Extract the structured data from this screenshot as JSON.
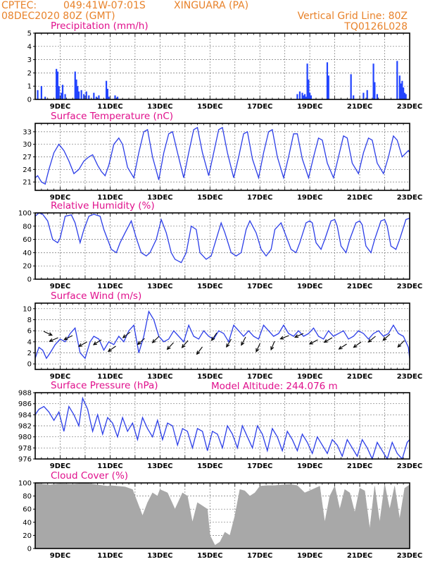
{
  "header": {
    "source": "CPTEC:",
    "coords": "049:41W-07:01S",
    "station": "XINGUARA (PA)",
    "run_time": "08DEC2020 80Z (GMT)",
    "grid_note": "Vertical Grid Line: 80Z",
    "product_code": "TQ0126L028"
  },
  "model_altitude": "Model Altitude: 244.076 m",
  "chart_data": [
    {
      "id": "precipitation",
      "type": "bar",
      "title": "Precipitation (mm/h)",
      "x_range_days": [
        8.0,
        23.0
      ],
      "x_ticks": [
        "9DEC",
        "11DEC",
        "13DEC",
        "15DEC",
        "17DEC",
        "19DEC",
        "21DEC",
        "23DEC"
      ],
      "ylim": [
        0,
        5
      ],
      "y_ticks": [
        0,
        1,
        2,
        3,
        4,
        5
      ],
      "x": [
        8.1,
        8.25,
        8.4,
        8.85,
        8.9,
        8.95,
        9.05,
        9.1,
        9.2,
        9.6,
        9.65,
        9.7,
        9.75,
        9.85,
        9.95,
        10.05,
        10.15,
        10.35,
        10.45,
        10.55,
        10.85,
        10.9,
        10.95,
        11.2,
        11.3,
        18.5,
        18.6,
        18.7,
        18.75,
        18.8,
        18.85,
        18.9,
        18.95,
        19.0,
        19.05,
        19.7,
        19.75,
        20.65,
        20.75,
        21.15,
        21.3,
        21.55,
        21.6,
        21.7,
        22.5,
        22.6,
        22.65,
        22.7,
        22.75,
        22.8,
        22.85
      ],
      "values": [
        0.7,
        1.0,
        0.2,
        2.3,
        2.1,
        1.0,
        0.5,
        1.1,
        0.4,
        2.1,
        1.5,
        1.0,
        0.6,
        0.7,
        0.4,
        0.6,
        0.3,
        0.5,
        0.2,
        0.3,
        1.4,
        0.8,
        0.2,
        0.3,
        0.2,
        0.4,
        0.6,
        0.5,
        0.3,
        0.4,
        0.2,
        2.7,
        1.5,
        0.5,
        0.3,
        2.8,
        1.8,
        1.9,
        0.3,
        0.5,
        0.7,
        2.7,
        1.3,
        0.4,
        2.9,
        1.8,
        1.2,
        1.4,
        0.9,
        0.5,
        0.4
      ]
    },
    {
      "id": "temperature",
      "type": "line",
      "title": "Surface Temperature (nC)",
      "x_range_days": [
        8.0,
        23.0
      ],
      "x_ticks": [
        "9DEC",
        "11DEC",
        "13DEC",
        "15DEC",
        "17DEC",
        "19DEC",
        "21DEC",
        "23DEC"
      ],
      "ylim": [
        19,
        35
      ],
      "y_ticks": [
        21,
        24,
        27,
        30,
        33
      ],
      "x": [
        8.0,
        8.1,
        8.25,
        8.4,
        8.55,
        8.75,
        8.95,
        9.15,
        9.35,
        9.55,
        9.75,
        9.95,
        10.15,
        10.3,
        10.5,
        10.65,
        10.8,
        10.95,
        11.15,
        11.35,
        11.5,
        11.7,
        11.95,
        12.15,
        12.35,
        12.5,
        12.7,
        12.95,
        13.15,
        13.35,
        13.5,
        13.7,
        13.95,
        14.15,
        14.35,
        14.5,
        14.7,
        14.95,
        15.15,
        15.35,
        15.5,
        15.7,
        15.95,
        16.15,
        16.35,
        16.5,
        16.7,
        16.95,
        17.15,
        17.35,
        17.5,
        17.7,
        17.95,
        18.15,
        18.35,
        18.5,
        18.7,
        18.95,
        19.15,
        19.35,
        19.5,
        19.7,
        19.95,
        20.15,
        20.35,
        20.5,
        20.7,
        20.95,
        21.15,
        21.35,
        21.5,
        21.7,
        21.95,
        22.15,
        22.35,
        22.5,
        22.7,
        22.95,
        23.0
      ],
      "values": [
        22,
        22.5,
        21,
        20.5,
        24,
        28,
        30,
        28.5,
        26,
        23,
        24,
        26,
        27,
        27.5,
        25,
        23.5,
        22.5,
        25,
        30,
        31.5,
        30,
        24.5,
        22,
        28,
        33,
        33.5,
        27,
        21.5,
        28,
        32.5,
        33,
        28,
        22,
        28,
        33.5,
        34,
        28,
        22.5,
        28,
        33.5,
        34,
        28,
        22,
        27,
        32.5,
        33,
        26.5,
        22,
        28,
        33,
        33.5,
        27,
        22,
        27,
        32.5,
        32.5,
        26.5,
        22,
        27,
        31.5,
        31,
        25.5,
        22,
        27,
        32,
        31.5,
        25.5,
        23,
        28,
        31.5,
        31,
        25.5,
        23,
        27,
        32,
        31,
        27,
        28.5,
        28
      ]
    },
    {
      "id": "humidity",
      "type": "line",
      "title": "Relative Humidity (%)",
      "x_range_days": [
        8.0,
        23.0
      ],
      "x_ticks": [
        "9DEC",
        "11DEC",
        "13DEC",
        "15DEC",
        "17DEC",
        "19DEC",
        "21DEC",
        "23DEC"
      ],
      "ylim": [
        0,
        100
      ],
      "y_ticks": [
        0,
        20,
        40,
        60,
        80,
        100
      ],
      "x": [
        8.0,
        8.15,
        8.3,
        8.5,
        8.7,
        8.9,
        9.0,
        9.2,
        9.45,
        9.6,
        9.8,
        9.95,
        10.15,
        10.35,
        10.6,
        10.75,
        10.9,
        11.05,
        11.25,
        11.4,
        11.6,
        11.85,
        12.05,
        12.25,
        12.45,
        12.6,
        12.85,
        13.05,
        13.25,
        13.45,
        13.6,
        13.85,
        14.05,
        14.25,
        14.45,
        14.6,
        14.85,
        15.05,
        15.25,
        15.45,
        15.6,
        15.85,
        16.05,
        16.25,
        16.45,
        16.6,
        16.85,
        17.05,
        17.25,
        17.45,
        17.6,
        17.85,
        18.05,
        18.25,
        18.45,
        18.6,
        18.85,
        19.0,
        19.1,
        19.25,
        19.45,
        19.6,
        19.85,
        20.0,
        20.1,
        20.25,
        20.45,
        20.6,
        20.85,
        21.0,
        21.1,
        21.25,
        21.45,
        21.6,
        21.85,
        22.0,
        22.1,
        22.25,
        22.45,
        22.6,
        22.85,
        23.0
      ],
      "values": [
        95,
        100,
        98,
        88,
        60,
        55,
        62,
        95,
        97,
        85,
        55,
        75,
        95,
        98,
        95,
        75,
        60,
        45,
        40,
        55,
        70,
        88,
        62,
        40,
        35,
        40,
        60,
        90,
        70,
        40,
        30,
        25,
        40,
        80,
        75,
        40,
        30,
        35,
        60,
        85,
        70,
        40,
        35,
        40,
        75,
        88,
        70,
        45,
        35,
        45,
        75,
        85,
        65,
        45,
        40,
        55,
        85,
        88,
        85,
        55,
        45,
        60,
        88,
        90,
        80,
        50,
        40,
        60,
        85,
        88,
        82,
        50,
        40,
        60,
        88,
        90,
        80,
        50,
        45,
        60,
        90,
        92
      ]
    },
    {
      "id": "wind",
      "type": "line",
      "title": "Surface Wind (m/s)",
      "x_range_days": [
        8.0,
        23.0
      ],
      "x_ticks": [
        "9DEC",
        "11DEC",
        "13DEC",
        "15DEC",
        "17DEC",
        "19DEC",
        "21DEC",
        "23DEC"
      ],
      "ylim": [
        -1,
        11
      ],
      "y_ticks": [
        0,
        2,
        4,
        6,
        8,
        10
      ],
      "x": [
        8.0,
        8.15,
        8.3,
        8.45,
        8.6,
        8.8,
        9.0,
        9.2,
        9.4,
        9.6,
        9.8,
        10.0,
        10.2,
        10.35,
        10.55,
        10.75,
        10.95,
        11.15,
        11.35,
        11.55,
        11.75,
        11.95,
        12.15,
        12.35,
        12.55,
        12.75,
        12.95,
        13.15,
        13.35,
        13.55,
        13.75,
        13.95,
        14.15,
        14.35,
        14.55,
        14.75,
        14.95,
        15.15,
        15.35,
        15.55,
        15.75,
        15.95,
        16.15,
        16.35,
        16.55,
        16.75,
        16.95,
        17.15,
        17.35,
        17.55,
        17.75,
        17.95,
        18.15,
        18.35,
        18.55,
        18.75,
        18.95,
        19.15,
        19.35,
        19.55,
        19.75,
        19.95,
        20.15,
        20.35,
        20.55,
        20.75,
        20.95,
        21.15,
        21.35,
        21.55,
        21.75,
        21.95,
        22.15,
        22.35,
        22.55,
        22.75,
        22.95,
        23.0
      ],
      "values": [
        1,
        3,
        2.5,
        1,
        2,
        3.5,
        4.5,
        4,
        5.5,
        6.5,
        2,
        1,
        4,
        5,
        4.5,
        2.5,
        4,
        3.5,
        5,
        4,
        6,
        7,
        2,
        5,
        9.5,
        8,
        5,
        4,
        4.5,
        6,
        5,
        4,
        7,
        5,
        4.5,
        6,
        5,
        4.5,
        6,
        5.5,
        4,
        7,
        6,
        5,
        6,
        5,
        4.5,
        7,
        6,
        5,
        5.5,
        7,
        5.5,
        5,
        6,
        5,
        5.5,
        6.5,
        5,
        4.5,
        6,
        5,
        5.5,
        6,
        4.5,
        5,
        6,
        5.5,
        4.5,
        5.5,
        6,
        5,
        5.5,
        7,
        5.5,
        5,
        3,
        1
      ]
    },
    {
      "id": "pressure",
      "type": "line",
      "title": "Surface Pressure (hPa)",
      "x_range_days": [
        8.0,
        23.0
      ],
      "x_ticks": [
        "9DEC",
        "11DEC",
        "13DEC",
        "15DEC",
        "17DEC",
        "19DEC",
        "21DEC",
        "23DEC"
      ],
      "ylim": [
        976,
        988
      ],
      "y_ticks": [
        976,
        978,
        980,
        982,
        984,
        986,
        988
      ],
      "x": [
        8.0,
        8.15,
        8.35,
        8.55,
        8.75,
        8.95,
        9.15,
        9.35,
        9.55,
        9.75,
        9.9,
        10.1,
        10.3,
        10.5,
        10.7,
        10.9,
        11.1,
        11.3,
        11.5,
        11.7,
        11.9,
        12.1,
        12.3,
        12.5,
        12.7,
        12.9,
        13.1,
        13.3,
        13.5,
        13.7,
        13.9,
        14.1,
        14.3,
        14.5,
        14.7,
        14.9,
        15.1,
        15.3,
        15.5,
        15.7,
        15.9,
        16.1,
        16.3,
        16.5,
        16.7,
        16.9,
        17.1,
        17.3,
        17.5,
        17.7,
        17.9,
        18.1,
        18.3,
        18.5,
        18.7,
        18.9,
        19.1,
        19.3,
        19.5,
        19.7,
        19.9,
        20.1,
        20.3,
        20.5,
        20.7,
        20.9,
        21.1,
        21.3,
        21.5,
        21.7,
        21.9,
        22.1,
        22.3,
        22.5,
        22.7,
        22.9,
        23.0
      ],
      "values": [
        984,
        985,
        985.5,
        984.5,
        983,
        984.5,
        981,
        985.5,
        984,
        982,
        987,
        985,
        981,
        984,
        980.5,
        983.5,
        982.5,
        980,
        983.5,
        981,
        982.5,
        979.5,
        983.5,
        981.5,
        980,
        983,
        979.5,
        982.5,
        982,
        978.5,
        981.5,
        981,
        978,
        981.5,
        981,
        977.5,
        981,
        980.5,
        978,
        982,
        980.5,
        978,
        982,
        980,
        978,
        982,
        980.5,
        977.5,
        981.5,
        980,
        977.5,
        981,
        979.5,
        977.5,
        980.5,
        979,
        977,
        980,
        978.5,
        977,
        979.5,
        978.5,
        976.5,
        979.5,
        978,
        976.5,
        979.5,
        978,
        976,
        979,
        977.5,
        976,
        979,
        977,
        976,
        979,
        979.5
      ]
    },
    {
      "id": "cloud",
      "type": "area",
      "title": "Cloud Cover (%)",
      "x_range_days": [
        8.0,
        23.0
      ],
      "x_ticks": [
        "9DEC",
        "11DEC",
        "13DEC",
        "15DEC",
        "17DEC",
        "19DEC",
        "21DEC",
        "23DEC"
      ],
      "ylim": [
        0,
        100
      ],
      "y_ticks": [
        0,
        20,
        40,
        60,
        80,
        100
      ],
      "x": [
        8.0,
        8.3,
        8.6,
        9.0,
        9.5,
        10.0,
        10.5,
        10.9,
        11.0,
        11.3,
        11.6,
        11.9,
        12.1,
        12.3,
        12.5,
        12.7,
        12.9,
        13.0,
        13.3,
        13.6,
        13.9,
        14.1,
        14.3,
        14.5,
        14.7,
        14.9,
        15.0,
        15.2,
        15.4,
        15.6,
        15.8,
        16.0,
        16.2,
        16.4,
        16.6,
        16.8,
        17.0,
        17.3,
        17.6,
        17.9,
        18.2,
        18.5,
        18.8,
        19.1,
        19.4,
        19.6,
        19.8,
        20.0,
        20.2,
        20.4,
        20.6,
        20.8,
        21.0,
        21.2,
        21.4,
        21.6,
        21.8,
        22.0,
        22.2,
        22.4,
        22.6,
        22.8,
        23.0
      ],
      "values": [
        100,
        98,
        97,
        99,
        98,
        100,
        97,
        95,
        96,
        95,
        94,
        90,
        70,
        50,
        70,
        85,
        80,
        90,
        85,
        60,
        85,
        80,
        40,
        70,
        65,
        60,
        20,
        5,
        10,
        25,
        20,
        50,
        90,
        88,
        80,
        85,
        95,
        96,
        96,
        97,
        98,
        96,
        85,
        90,
        95,
        40,
        80,
        95,
        60,
        90,
        85,
        55,
        92,
        88,
        30,
        95,
        40,
        98,
        60,
        95,
        45,
        92,
        97
      ]
    }
  ]
}
